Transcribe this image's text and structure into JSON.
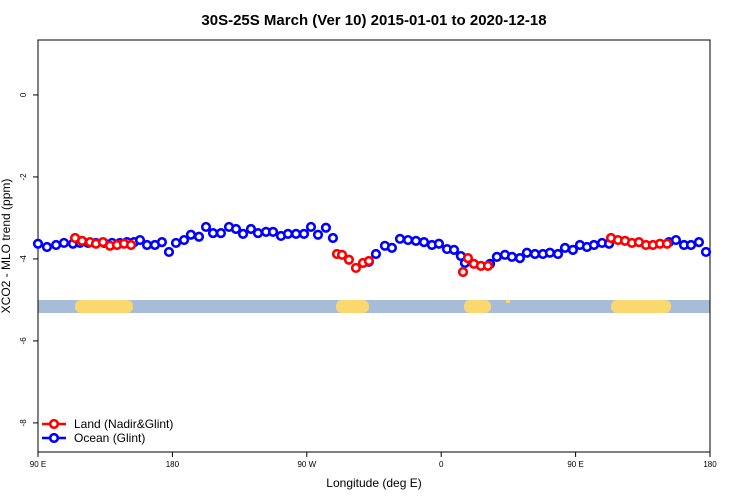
{
  "chart_data": {
    "type": "scatter",
    "title": "30S-25S March (Ver 10)   2015-01-01 to 2020-12-18",
    "xlabel": "Longitude (deg E)",
    "ylabel": "XCO2 - MLO trend (ppm)",
    "xlim": [
      90,
      540
    ],
    "ylim": [
      -8.71,
      1.34
    ],
    "xticks": [
      {
        "value": 90,
        "label": "90 E"
      },
      180,
      {
        "value": 270,
        "label": "90 W"
      },
      {
        "value": 360,
        "label": "0"
      },
      {
        "value": 450,
        "label": "90 E"
      },
      {
        "value": 540,
        "label": "180"
      }
    ],
    "yticks": [
      0,
      -2,
      -4,
      -6,
      -8
    ],
    "legend": "bottomleft",
    "series": [
      {
        "name": "Ocean (Glint)",
        "color": "#0000ff",
        "x": [
          90,
          96.0,
          102.1,
          107.4,
          113.4,
          118.1,
          123.5,
          128.8,
          134.2,
          139.6,
          144.9,
          149.6,
          154.3,
          158.3,
          163.0,
          168.3,
          173.0,
          177.7,
          182.4,
          187.8,
          192.4,
          197.8,
          202.5,
          207.2,
          212.5,
          217.9,
          222.6,
          227.3,
          232.6,
          237.3,
          242.7,
          247.4,
          252.7,
          257.4,
          262.8,
          268.1,
          272.8,
          277.5,
          282.8,
          287.5,
          311.6,
          316.3,
          322.3,
          327.0,
          332.4,
          337.8,
          343.1,
          348.5,
          353.8,
          358.5,
          363.9,
          368.6,
          373.2,
          375.9,
          392.7,
          397.3,
          402.7,
          407.4,
          412.7,
          417.4,
          422.8,
          428.1,
          432.8,
          438.2,
          442.9,
          448.2,
          452.9,
          457.6,
          462.3,
          467.7,
          472.4,
          512.5,
          517.2,
          522.6,
          527.3,
          532.6,
          537.3
        ],
        "values": [
          -3.63,
          -3.71,
          -3.66,
          -3.61,
          -3.63,
          -3.61,
          -3.61,
          -3.61,
          -3.61,
          -3.61,
          -3.61,
          -3.59,
          -3.59,
          -3.54,
          -3.66,
          -3.66,
          -3.59,
          -3.83,
          -3.61,
          -3.54,
          -3.41,
          -3.46,
          -3.22,
          -3.37,
          -3.37,
          -3.22,
          -3.27,
          -3.39,
          -3.27,
          -3.37,
          -3.34,
          -3.34,
          -3.44,
          -3.39,
          -3.39,
          -3.39,
          -3.22,
          -3.41,
          -3.24,
          -3.49,
          -4.07,
          -3.88,
          -3.68,
          -3.73,
          -3.51,
          -3.54,
          -3.56,
          -3.59,
          -3.66,
          -3.63,
          -3.76,
          -3.78,
          -3.93,
          -4.1,
          -4.12,
          -3.95,
          -3.9,
          -3.95,
          -3.98,
          -3.85,
          -3.88,
          -3.88,
          -3.85,
          -3.88,
          -3.73,
          -3.78,
          -3.66,
          -3.71,
          -3.66,
          -3.61,
          -3.63,
          -3.59,
          -3.54,
          -3.66,
          -3.66,
          -3.59,
          -3.83
        ]
      },
      {
        "name": "Land (Nadir&Glint)",
        "color": "#ff0000",
        "x": [
          114.8,
          119.5,
          124.8,
          128.8,
          133.5,
          138.2,
          142.9,
          147.6,
          152.3,
          290.2,
          293.6,
          298.2,
          302.9,
          307.6,
          311.6,
          374.6,
          377.9,
          381.9,
          386.6,
          391.3,
          473.7,
          478.4,
          483.1,
          487.7,
          492.4,
          497.1,
          501.8,
          506.5,
          511.2
        ],
        "values": [
          -3.49,
          -3.56,
          -3.59,
          -3.63,
          -3.59,
          -3.68,
          -3.66,
          -3.63,
          -3.66,
          -3.88,
          -3.9,
          -4.02,
          -4.22,
          -4.1,
          -4.05,
          -4.32,
          -3.98,
          -4.12,
          -4.17,
          -4.17,
          -3.49,
          -3.54,
          -3.56,
          -3.61,
          -3.59,
          -3.66,
          -3.66,
          -3.63,
          -3.63
        ]
      }
    ]
  }
}
